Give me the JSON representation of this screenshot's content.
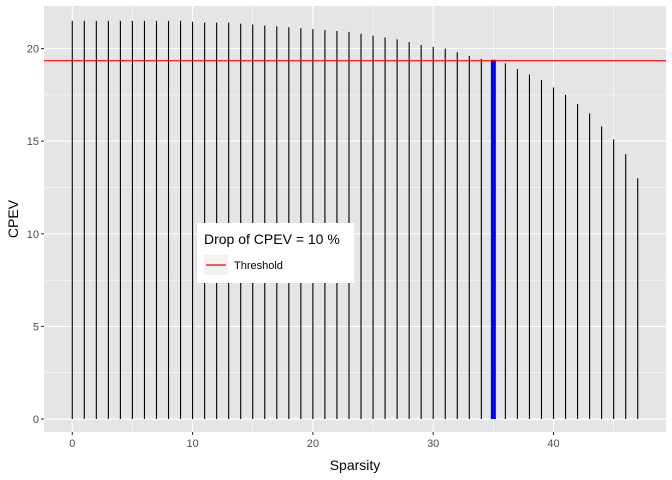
{
  "chart_data": {
    "type": "bar",
    "subtype": "lollipop-segments",
    "xlabel": "Sparsity",
    "ylabel": "CPEV",
    "xlim": [
      -2.35,
      49.35
    ],
    "ylim": [
      -0.7,
      22.3
    ],
    "x_ticks": [
      0,
      10,
      20,
      30,
      40
    ],
    "y_ticks": [
      0,
      5,
      10,
      15,
      20
    ],
    "grid": true,
    "panel_background": "#e5e5e5",
    "grid_color": "#ffffff",
    "segment_color": "#000000",
    "highlight_color": "#0000ff",
    "threshold_color": "#ff0000",
    "x": [
      0,
      1,
      2,
      3,
      4,
      5,
      6,
      7,
      8,
      9,
      10,
      11,
      12,
      13,
      14,
      15,
      16,
      17,
      18,
      19,
      20,
      21,
      22,
      23,
      24,
      25,
      26,
      27,
      28,
      29,
      30,
      31,
      32,
      33,
      34,
      35,
      36,
      37,
      38,
      39,
      40,
      41,
      42,
      43,
      44,
      45,
      46,
      47
    ],
    "values": [
      21.5,
      21.5,
      21.5,
      21.5,
      21.5,
      21.5,
      21.5,
      21.5,
      21.5,
      21.5,
      21.45,
      21.4,
      21.4,
      21.4,
      21.35,
      21.3,
      21.25,
      21.2,
      21.15,
      21.1,
      21.05,
      21.0,
      20.95,
      20.9,
      20.8,
      20.7,
      20.6,
      20.5,
      20.35,
      20.2,
      20.1,
      20.0,
      19.8,
      19.6,
      19.45,
      19.4,
      19.2,
      18.9,
      18.6,
      18.3,
      17.9,
      17.5,
      17.0,
      16.5,
      15.8,
      15.1,
      14.3,
      13.0
    ],
    "highlight_index": 35,
    "threshold": 19.35,
    "legend": {
      "title": "Drop of CPEV = 10 %",
      "entries": [
        {
          "label": "Threshold",
          "color": "#ff0000"
        }
      ],
      "placement": "inside-left-middle"
    }
  }
}
